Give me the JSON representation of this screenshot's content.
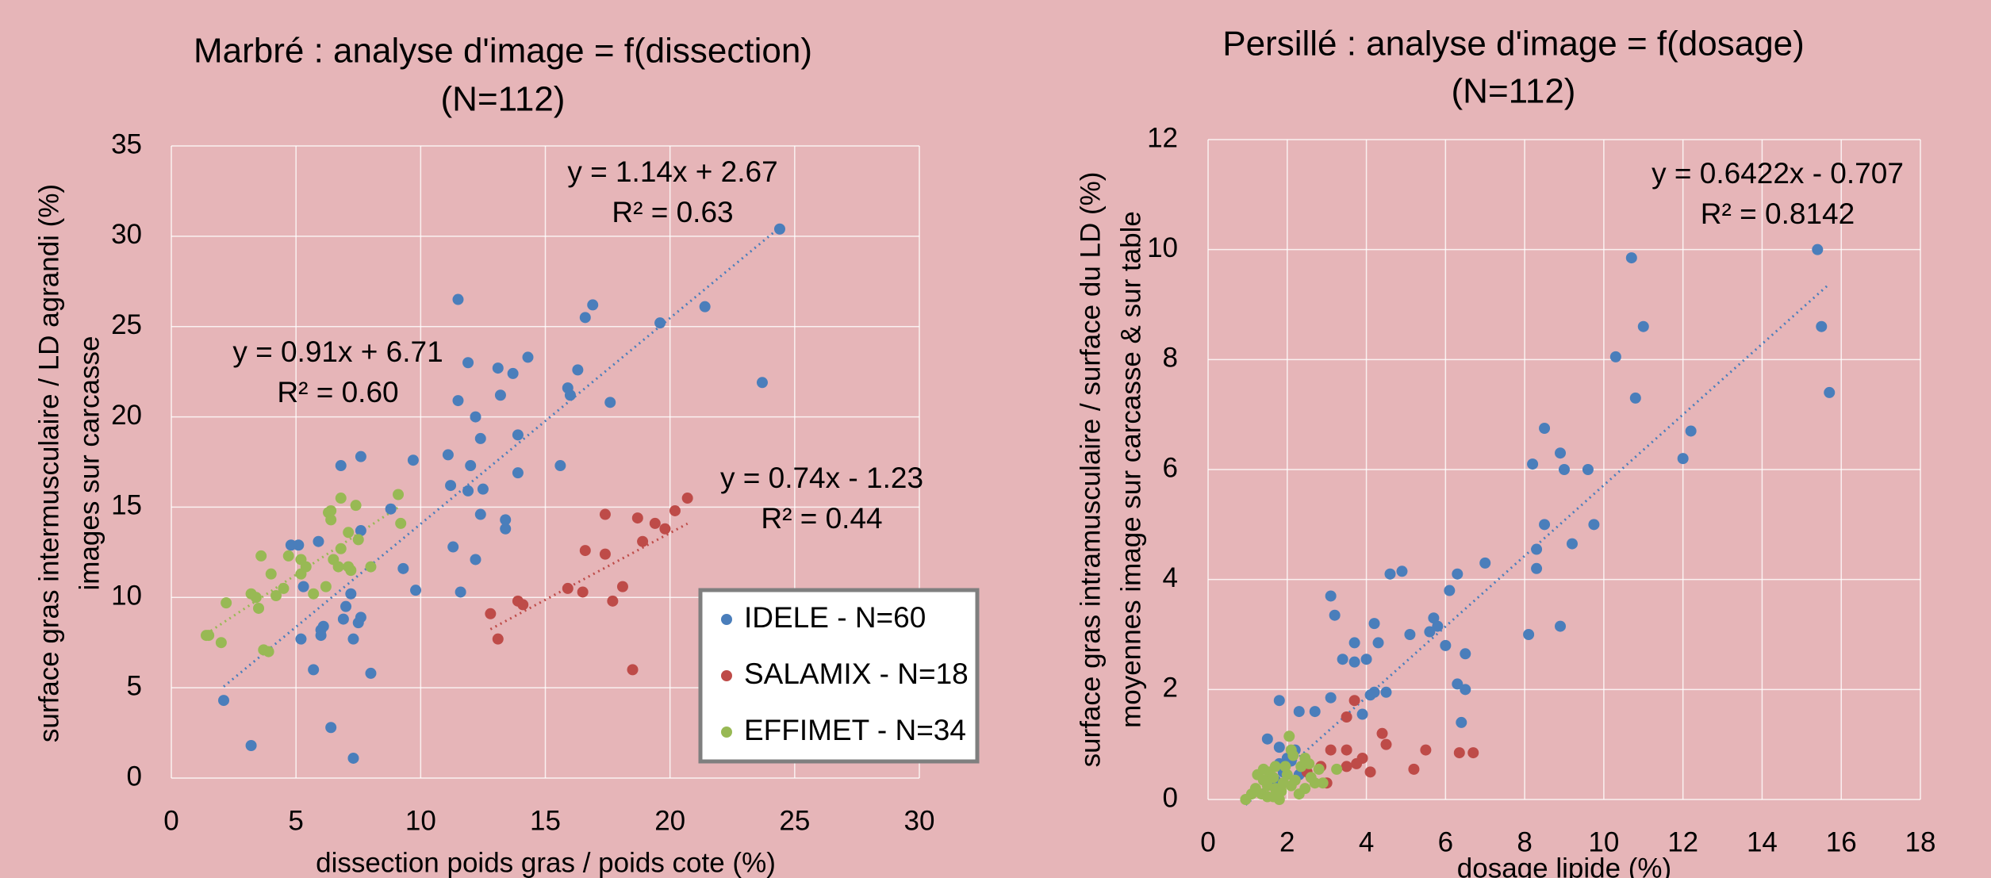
{
  "chart_data": [
    {
      "type": "scatter",
      "title": "Marbré : analyse d'image = f(dissection)",
      "subtitle": "(N=112)",
      "xlabel": "dissection poids gras / poids cote (%)",
      "ylabel": [
        "surface gras intermusculaire / LD agrandi (%)",
        "images sur carcasse"
      ],
      "xlim": [
        0,
        30
      ],
      "xticks": [
        0,
        5,
        10,
        15,
        20,
        25,
        30
      ],
      "ylim": [
        0,
        35
      ],
      "yticks": [
        0,
        5,
        10,
        15,
        20,
        25,
        30,
        35
      ],
      "grid": true,
      "legend": "lower right",
      "series": [
        {
          "name": "IDELE - N=60",
          "color": "#4a7ebb",
          "x": [
            2.1,
            3.2,
            24.4,
            21.4,
            19.6,
            23.7,
            11.5,
            16.9,
            16.6,
            16.3,
            15.9,
            16.0,
            17.6,
            14.3,
            13.1,
            13.7,
            11.9,
            11.5,
            13.2,
            12.2,
            12.4,
            13.9,
            11.1,
            9.7,
            7.6,
            6.8,
            12.0,
            11.9,
            12.5,
            11.2,
            15.6,
            13.9,
            8.8,
            12.4,
            13.4,
            13.4,
            7.6,
            5.9,
            5.1,
            11.3,
            12.2,
            9.3,
            9.8,
            11.6,
            7.2,
            5.3,
            6.0,
            6.0,
            5.2,
            7.6,
            7.5,
            6.9,
            7.3,
            8.0,
            5.7,
            6.4,
            7.3,
            4.8,
            7.0,
            6.1
          ],
          "y": [
            4.3,
            1.8,
            30.4,
            26.1,
            25.2,
            21.9,
            26.5,
            26.2,
            25.5,
            22.6,
            21.6,
            21.2,
            20.8,
            23.3,
            22.7,
            22.4,
            23.0,
            20.9,
            21.2,
            20.0,
            18.8,
            19.0,
            17.9,
            17.6,
            17.8,
            17.3,
            17.3,
            15.9,
            16.0,
            16.2,
            17.3,
            16.9,
            14.9,
            14.6,
            14.3,
            13.8,
            13.7,
            13.1,
            12.9,
            12.8,
            12.1,
            11.6,
            10.4,
            10.3,
            10.2,
            10.6,
            8.2,
            7.9,
            7.7,
            8.9,
            8.6,
            8.8,
            7.7,
            5.8,
            6.0,
            2.8,
            1.1,
            12.9,
            9.5,
            8.4
          ],
          "trend": {
            "equation": "y = 1.14x + 2.67",
            "r2": "R² = 0.63",
            "slope": 1.14,
            "intercept": 2.67
          }
        },
        {
          "name": "SALAMIX - N=18",
          "color": "#be4b48",
          "x": [
            20.7,
            20.2,
            19.8,
            19.4,
            18.9,
            18.7,
            17.4,
            17.4,
            16.6,
            18.1,
            17.7,
            16.5,
            15.9,
            13.9,
            14.1,
            12.8,
            13.1,
            18.5
          ],
          "y": [
            15.5,
            14.8,
            13.8,
            14.1,
            13.1,
            14.4,
            14.6,
            12.4,
            12.6,
            10.6,
            9.8,
            10.3,
            10.5,
            9.8,
            9.6,
            9.1,
            7.7,
            6.0
          ],
          "trend": {
            "equation": "y = 0.74x - 1.23",
            "r2": "R² = 0.44",
            "slope": 0.74,
            "intercept": -1.23
          }
        },
        {
          "name": "EFFIMET - N=34",
          "color": "#98b954",
          "x": [
            1.4,
            1.5,
            2.0,
            2.2,
            3.4,
            3.2,
            3.5,
            3.6,
            3.7,
            3.9,
            4.0,
            4.2,
            4.7,
            4.5,
            5.2,
            5.2,
            5.7,
            5.4,
            6.3,
            6.4,
            6.2,
            6.5,
            6.7,
            6.8,
            6.8,
            7.1,
            7.1,
            7.2,
            7.4,
            7.5,
            8.0,
            9.1,
            9.2,
            6.4
          ],
          "y": [
            7.9,
            7.9,
            7.5,
            9.7,
            10.0,
            10.2,
            9.4,
            12.3,
            7.1,
            7.0,
            11.3,
            10.1,
            12.3,
            10.5,
            12.1,
            11.3,
            10.2,
            11.7,
            14.7,
            14.3,
            10.6,
            12.1,
            11.7,
            12.7,
            15.5,
            13.6,
            11.7,
            11.5,
            15.1,
            13.2,
            11.7,
            15.7,
            14.1,
            14.8
          ],
          "trend": {
            "equation": "y = 0.91x + 6.71",
            "r2": "R² = 0.60",
            "slope": 0.91,
            "intercept": 6.71
          }
        }
      ]
    },
    {
      "type": "scatter",
      "title": "Persillé : analyse d'image = f(dosage)",
      "subtitle": "(N=112)",
      "xlabel": "dosage lipide (%)",
      "ylabel": [
        "surface gras intramusculaire / surface du LD (%)",
        "moyennes image sur carcasse & sur table"
      ],
      "xlim": [
        0,
        18
      ],
      "xticks": [
        0,
        2,
        4,
        6,
        8,
        10,
        12,
        14,
        16,
        18
      ],
      "ylim": [
        0,
        12
      ],
      "yticks": [
        0,
        2,
        4,
        6,
        8,
        10,
        12
      ],
      "grid": true,
      "trend": {
        "equation": "y = 0.6422x - 0.707",
        "r2": "R² = 0.8142",
        "slope": 0.6422,
        "intercept": -0.707,
        "color": "#4a7ebb"
      },
      "series": [
        {
          "color": "#4a7ebb",
          "x": [
            15.4,
            10.7,
            11.0,
            10.3,
            10.8,
            15.5,
            15.7,
            12.2,
            12.0,
            8.5,
            8.9,
            8.2,
            9.0,
            9.6,
            8.5,
            9.75,
            9.2,
            8.3,
            8.3,
            7.0,
            8.1,
            8.9,
            4.9,
            4.6,
            6.1,
            6.3,
            3.1,
            3.2,
            4.2,
            5.1,
            5.7,
            5.6,
            5.8,
            6.0,
            3.7,
            4.0,
            3.4,
            3.7,
            4.3,
            6.3,
            6.5,
            6.5,
            6.4,
            4.2,
            4.1,
            4.5,
            3.1,
            2.7,
            3.9,
            1.8,
            1.5,
            2.3,
            2.2,
            1.8,
            2.0,
            1.8,
            2.1,
            2.3,
            1.9,
            1.7
          ],
          "y": [
            10.0,
            9.85,
            8.6,
            8.05,
            7.3,
            8.6,
            7.4,
            6.7,
            6.2,
            6.75,
            6.3,
            6.1,
            6.0,
            6.0,
            5.0,
            5.0,
            4.65,
            4.55,
            4.2,
            4.3,
            3.0,
            3.15,
            4.15,
            4.1,
            3.8,
            4.1,
            3.7,
            3.35,
            3.2,
            3.0,
            3.3,
            3.05,
            3.15,
            2.8,
            2.85,
            2.55,
            2.55,
            2.5,
            2.85,
            2.1,
            2.0,
            2.65,
            1.4,
            1.95,
            1.9,
            1.95,
            1.85,
            1.6,
            1.55,
            1.8,
            1.1,
            1.6,
            0.9,
            0.95,
            0.75,
            0.65,
            0.7,
            0.45,
            0.5,
            0.35
          ]
        },
        {
          "color": "#be4b48",
          "x": [
            3.7,
            3.5,
            4.4,
            4.5,
            5.5,
            6.35,
            6.7,
            3.1,
            3.5,
            3.9,
            3.75,
            3.5,
            4.1,
            5.2,
            2.85,
            3.0,
            2.5,
            2.45
          ],
          "y": [
            1.8,
            1.5,
            1.2,
            1.0,
            0.9,
            0.85,
            0.85,
            0.9,
            0.9,
            0.75,
            0.65,
            0.6,
            0.5,
            0.55,
            0.6,
            0.3,
            0.5,
            0.65
          ]
        },
        {
          "color": "#98b954",
          "x": [
            2.05,
            0.95,
            1.1,
            1.35,
            1.5,
            1.25,
            1.4,
            1.55,
            1.65,
            1.7,
            1.5,
            1.7,
            1.9,
            2.0,
            2.1,
            2.2,
            2.35,
            1.95,
            2.15,
            2.45,
            2.55,
            2.6,
            2.7,
            2.9,
            3.25,
            2.8,
            1.8,
            1.65,
            1.85,
            2.3,
            2.45,
            1.2,
            1.4,
            2.1
          ],
          "y": [
            1.15,
            0.0,
            0.1,
            0.1,
            0.25,
            0.45,
            0.55,
            0.5,
            0.4,
            0.6,
            0.05,
            0.2,
            0.3,
            0.45,
            0.25,
            0.35,
            0.6,
            0.6,
            0.8,
            0.75,
            0.65,
            0.4,
            0.3,
            0.3,
            0.55,
            0.55,
            0.0,
            0.05,
            0.15,
            0.1,
            0.2,
            0.2,
            0.35,
            0.9
          ]
        }
      ]
    }
  ]
}
